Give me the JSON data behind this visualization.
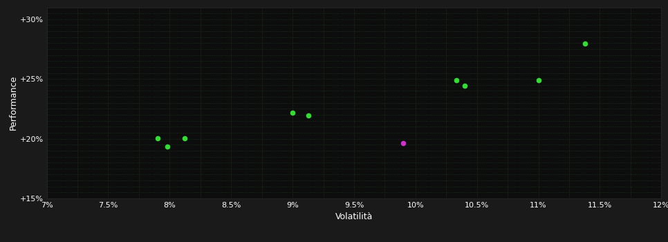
{
  "background_color": "#1a1a1a",
  "plot_bg_color": "#0d0d0d",
  "text_color": "#ffffff",
  "xlabel": "Volatilità",
  "ylabel": "Performance",
  "xlim": [
    0.07,
    0.12
  ],
  "ylim": [
    0.15,
    0.31
  ],
  "xticks": [
    0.07,
    0.075,
    0.08,
    0.085,
    0.09,
    0.095,
    0.1,
    0.105,
    0.11,
    0.115,
    0.12
  ],
  "xtick_labels": [
    "7%",
    "7.5%",
    "8%",
    "8.5%",
    "9%",
    "9.5%",
    "10%",
    "10.5%",
    "11%",
    "11.5%",
    "12%"
  ],
  "yticks": [
    0.15,
    0.2,
    0.25,
    0.3
  ],
  "ytick_labels": [
    "+15%",
    "+20%",
    "+25%",
    "+30%"
  ],
  "minor_yticks": [
    0.155,
    0.16,
    0.165,
    0.17,
    0.175,
    0.18,
    0.185,
    0.19,
    0.195,
    0.205,
    0.21,
    0.215,
    0.22,
    0.225,
    0.23,
    0.235,
    0.24,
    0.245,
    0.255,
    0.26,
    0.265,
    0.27,
    0.275,
    0.28,
    0.285,
    0.29,
    0.295,
    0.305,
    0.31
  ],
  "minor_xticks": [
    0.0725,
    0.0775,
    0.0825,
    0.0875,
    0.0925,
    0.0975,
    0.1025,
    0.1075,
    0.1125,
    0.1175
  ],
  "green_points": [
    [
      0.079,
      0.2005
    ],
    [
      0.0812,
      0.2005
    ],
    [
      0.0798,
      0.1935
    ],
    [
      0.09,
      0.2215
    ],
    [
      0.0913,
      0.2195
    ],
    [
      0.1033,
      0.249
    ],
    [
      0.104,
      0.2445
    ],
    [
      0.11,
      0.249
    ],
    [
      0.1138,
      0.2795
    ]
  ],
  "magenta_points": [
    [
      0.099,
      0.1965
    ]
  ],
  "green_color": "#33dd33",
  "magenta_color": "#cc33cc",
  "point_size": 20,
  "font_size": 8,
  "label_fontsize": 9,
  "grid_color": "#1e3a1e",
  "grid_linestyle": ":",
  "grid_linewidth": 0.6
}
